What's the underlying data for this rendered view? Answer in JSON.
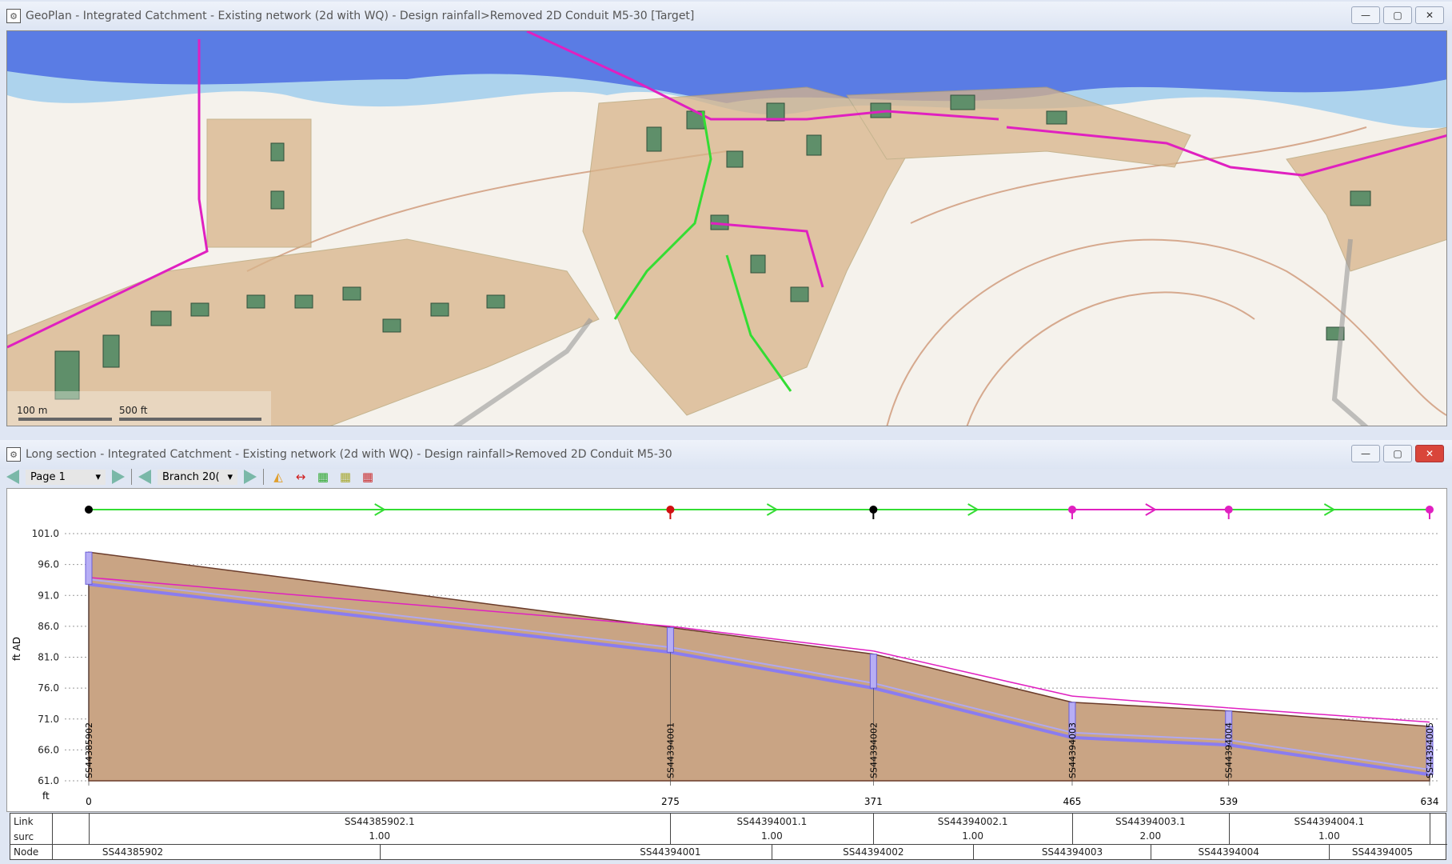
{
  "geoplan": {
    "title": "GeoPlan - Integrated Catchment - Existing network (2d with WQ) - Design rainfall>Removed 2D Conduit M5-30  [Target]",
    "scale_m": "100 m",
    "scale_ft": "500 ft"
  },
  "longsection": {
    "title": "Long section - Integrated Catchment - Existing network (2d with WQ) - Design rainfall>Removed 2D Conduit M5-30",
    "toolbar": {
      "page": "Page 1",
      "branch": "Branch 20("
    },
    "window_buttons": {
      "min": "—",
      "max": "▢",
      "close": "✕"
    }
  },
  "chart_data": {
    "type": "line",
    "ylabel": "ft AD",
    "xlabel": "ft",
    "ylim": [
      61,
      101
    ],
    "yticks": [
      101.0,
      96.0,
      91.0,
      86.0,
      81.0,
      76.0,
      71.0,
      66.0,
      61.0
    ],
    "xlim": [
      0,
      634
    ],
    "grid": "horizontal dotted",
    "nodes": [
      {
        "id": "SS44385902",
        "x": 0,
        "color": "#000000",
        "ground": 98.0,
        "invert": 92.8,
        "hgl": 93.9
      },
      {
        "id": "SS44394001",
        "x": 275,
        "color": "#d01010",
        "ground": 85.8,
        "invert": 81.8,
        "hgl": 86.0
      },
      {
        "id": "SS44394002",
        "x": 371,
        "color": "#000000",
        "ground": 81.5,
        "invert": 76.0,
        "hgl": 82.0
      },
      {
        "id": "SS44394003",
        "x": 465,
        "color": "#e020c0",
        "ground": 73.7,
        "invert": 68.0,
        "hgl": 74.7
      },
      {
        "id": "SS44394004",
        "x": 539,
        "color": "#e020c0",
        "ground": 72.3,
        "invert": 66.8,
        "hgl": 72.8
      },
      {
        "id": "SS44394005",
        "x": 634,
        "color": "#e020c0",
        "ground": 69.8,
        "invert": 62.0,
        "hgl": 70.5
      }
    ],
    "links": [
      {
        "id": "SS44385902.1",
        "surc": "1.00",
        "color": "#33dd33"
      },
      {
        "id": "SS44394001.1",
        "surc": "1.00",
        "color": "#33dd33"
      },
      {
        "id": "SS44394002.1",
        "surc": "1.00",
        "color": "#33dd33"
      },
      {
        "id": "SS44394003.1",
        "surc": "2.00",
        "color": "#e020c0"
      },
      {
        "id": "SS44394004.1",
        "surc": "1.00",
        "color": "#33dd33"
      }
    ],
    "row_labels": {
      "link": "Link",
      "surc": "surc",
      "node": "Node"
    },
    "colors": {
      "ground": "#c9a484",
      "pipe": "#8a7cf0",
      "hgl": "#e020c0"
    }
  }
}
